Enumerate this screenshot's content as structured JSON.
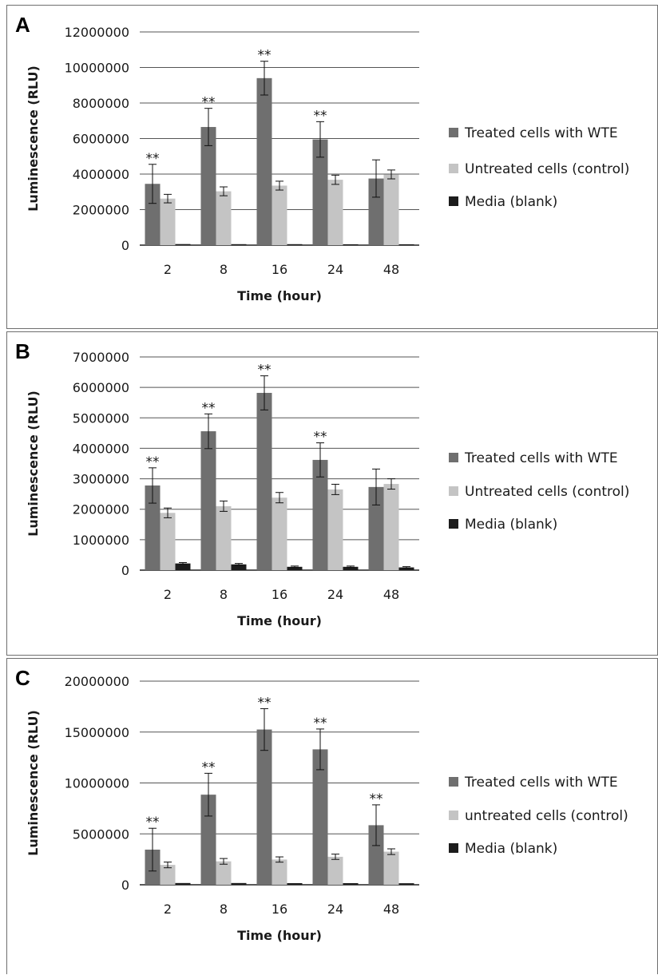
{
  "colors": {
    "treated": "#6f6f6f",
    "untreated": "#c4c4c4",
    "media": "#1c1c1c",
    "grid": "#555555",
    "axis": "#222222"
  },
  "chart_data": [
    {
      "panel": "A",
      "type": "bar",
      "xlabel": "Time (hour)",
      "ylabel": "Luminescence (RLU)",
      "ylim": [
        0,
        12000000
      ],
      "yticks": [
        0,
        2000000,
        4000000,
        6000000,
        8000000,
        10000000,
        12000000
      ],
      "ytick_labels": [
        "0",
        "2000000",
        "4000000",
        "6000000",
        "8000000",
        "10000000",
        "12000000"
      ],
      "categories": [
        "2",
        "8",
        "16",
        "24",
        "48"
      ],
      "grid": true,
      "legend_position": "right",
      "series": [
        {
          "name": "Treated cells with WTE",
          "values": [
            3450000,
            6650000,
            9400000,
            5950000,
            3750000
          ],
          "errors": [
            1100000,
            1050000,
            950000,
            1000000,
            1050000
          ]
        },
        {
          "name": "Untreated cells (control)",
          "values": [
            2620000,
            3030000,
            3350000,
            3680000,
            3980000
          ],
          "errors": [
            240000,
            250000,
            250000,
            260000,
            250000
          ]
        },
        {
          "name": "Media (blank)",
          "values": [
            60000,
            55000,
            55000,
            50000,
            50000
          ],
          "errors": [
            0,
            0,
            0,
            0,
            0
          ]
        }
      ],
      "significance": [
        "**",
        "**",
        "**",
        "**",
        ""
      ]
    },
    {
      "panel": "B",
      "type": "bar",
      "xlabel": "Time (hour)",
      "ylabel": "Luminescence (RLU)",
      "ylim": [
        0,
        7000000
      ],
      "yticks": [
        0,
        1000000,
        2000000,
        3000000,
        4000000,
        5000000,
        6000000,
        7000000
      ],
      "ytick_labels": [
        "0",
        "1000000",
        "2000000",
        "3000000",
        "4000000",
        "5000000",
        "6000000",
        "7000000"
      ],
      "categories": [
        "2",
        "8",
        "16",
        "24",
        "48"
      ],
      "grid": true,
      "legend_position": "right",
      "series": [
        {
          "name": "Treated cells with WTE",
          "values": [
            2780000,
            4560000,
            5820000,
            3620000,
            2730000
          ],
          "errors": [
            580000,
            570000,
            560000,
            560000,
            590000
          ]
        },
        {
          "name": "Untreated cells (control)",
          "values": [
            1880000,
            2100000,
            2380000,
            2650000,
            2830000
          ],
          "errors": [
            160000,
            170000,
            170000,
            170000,
            170000
          ]
        },
        {
          "name": "Media (blank)",
          "values": [
            220000,
            190000,
            110000,
            110000,
            90000
          ],
          "errors": [
            30000,
            30000,
            25000,
            25000,
            25000
          ]
        }
      ],
      "significance": [
        "**",
        "**",
        "**",
        "**",
        ""
      ]
    },
    {
      "panel": "C",
      "type": "bar",
      "xlabel": "Time (hour)",
      "ylabel": "Luminescence (RLU)",
      "ylim": [
        0,
        20000000
      ],
      "yticks": [
        0,
        5000000,
        10000000,
        15000000,
        20000000
      ],
      "ytick_labels": [
        "0",
        "5000000",
        "10000000",
        "15000000",
        "20000000"
      ],
      "categories": [
        "2",
        "8",
        "16",
        "24",
        "48"
      ],
      "grid": true,
      "legend_position": "right",
      "series": [
        {
          "name": "Treated cells with WTE",
          "values": [
            3450000,
            8850000,
            15250000,
            13300000,
            5850000
          ],
          "errors": [
            2100000,
            2100000,
            2050000,
            2000000,
            2000000
          ]
        },
        {
          "name": "untreated cells (control)",
          "values": [
            1950000,
            2300000,
            2480000,
            2750000,
            3250000
          ],
          "errors": [
            280000,
            280000,
            260000,
            260000,
            280000
          ]
        },
        {
          "name": "Media (blank)",
          "values": [
            170000,
            170000,
            160000,
            160000,
            150000
          ],
          "errors": [
            0,
            0,
            0,
            0,
            0
          ]
        }
      ],
      "significance": [
        "**",
        "**",
        "**",
        "**",
        "**"
      ]
    }
  ]
}
